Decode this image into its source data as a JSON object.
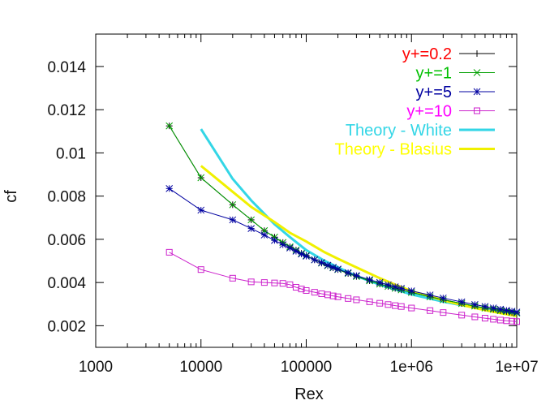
{
  "chart_data": {
    "type": "line",
    "xlabel": "Rex",
    "ylabel": "cf",
    "xscale": "log",
    "xlim": [
      1000,
      10000000
    ],
    "ylim": [
      0.001,
      0.0155
    ],
    "x_ticks": [
      {
        "value": 1000,
        "label": "1000"
      },
      {
        "value": 10000,
        "label": "10000"
      },
      {
        "value": 100000,
        "label": "100000"
      },
      {
        "value": 1000000,
        "label": "1e+06"
      },
      {
        "value": 10000000,
        "label": "1e+07"
      }
    ],
    "y_ticks": [
      {
        "value": 0.002,
        "label": "0.002"
      },
      {
        "value": 0.004,
        "label": "0.004"
      },
      {
        "value": 0.006,
        "label": "0.006"
      },
      {
        "value": 0.008,
        "label": "0.008"
      },
      {
        "value": 0.01,
        "label": "0.01"
      },
      {
        "value": 0.012,
        "label": "0.012"
      },
      {
        "value": 0.014,
        "label": "0.014"
      }
    ],
    "legend_position": "top-right",
    "grid": false,
    "series": [
      {
        "name": "y+=0.2",
        "color": "#ff0000",
        "line_color": "#000000",
        "marker": "plus",
        "x": [
          5000,
          10000,
          20000,
          30000,
          40000,
          50000,
          60000,
          70000,
          80000,
          90000,
          100000,
          120000,
          140000,
          160000,
          180000,
          200000,
          250000,
          300000,
          400000,
          500000,
          600000,
          700000,
          800000,
          1000000,
          1500000,
          2000000,
          3000000,
          4000000,
          5000000,
          6000000,
          7000000,
          8000000,
          9000000,
          10000000
        ],
        "y": [
          0.01125,
          0.00885,
          0.0076,
          0.0069,
          0.0064,
          0.0061,
          0.00585,
          0.00565,
          0.0055,
          0.00535,
          0.00525,
          0.00505,
          0.0049,
          0.00478,
          0.00468,
          0.0046,
          0.00442,
          0.00428,
          0.00408,
          0.00393,
          0.00382,
          0.00373,
          0.00366,
          0.00354,
          0.00334,
          0.0032,
          0.00303,
          0.00291,
          0.00282,
          0.00276,
          0.0027,
          0.00266,
          0.00262,
          0.00258
        ]
      },
      {
        "name": "y+=1",
        "color": "#00c000",
        "line_color": "#00a000",
        "marker": "x",
        "x": [
          5000,
          10000,
          20000,
          30000,
          40000,
          50000,
          60000,
          70000,
          80000,
          90000,
          100000,
          120000,
          140000,
          160000,
          180000,
          200000,
          250000,
          300000,
          400000,
          500000,
          600000,
          700000,
          800000,
          1000000,
          1500000,
          2000000,
          3000000,
          4000000,
          5000000,
          6000000,
          7000000,
          8000000,
          9000000,
          10000000
        ],
        "y": [
          0.01125,
          0.00885,
          0.0076,
          0.0069,
          0.0064,
          0.0061,
          0.00585,
          0.00565,
          0.0055,
          0.00535,
          0.00525,
          0.00505,
          0.0049,
          0.00478,
          0.00468,
          0.0046,
          0.00442,
          0.00428,
          0.00408,
          0.00393,
          0.00382,
          0.00373,
          0.00366,
          0.00354,
          0.00334,
          0.0032,
          0.00303,
          0.00291,
          0.00282,
          0.00276,
          0.0027,
          0.00266,
          0.00262,
          0.00258
        ]
      },
      {
        "name": "y+=5",
        "color": "#0000a0",
        "line_color": "#0000a0",
        "marker": "star",
        "x": [
          5000,
          10000,
          20000,
          30000,
          40000,
          50000,
          60000,
          70000,
          80000,
          90000,
          100000,
          120000,
          140000,
          160000,
          180000,
          200000,
          250000,
          300000,
          400000,
          500000,
          600000,
          700000,
          800000,
          1000000,
          1500000,
          2000000,
          3000000,
          4000000,
          5000000,
          6000000,
          7000000,
          8000000,
          9000000,
          10000000
        ],
        "y": [
          0.00835,
          0.00735,
          0.0069,
          0.0065,
          0.0062,
          0.00595,
          0.00575,
          0.0056,
          0.00545,
          0.00532,
          0.00522,
          0.00505,
          0.00492,
          0.0048,
          0.0047,
          0.00462,
          0.00445,
          0.00432,
          0.00413,
          0.004,
          0.00389,
          0.0038,
          0.00373,
          0.00361,
          0.00342,
          0.00328,
          0.0031,
          0.00298,
          0.00289,
          0.00282,
          0.00276,
          0.00271,
          0.00267,
          0.00263
        ]
      },
      {
        "name": "y+=10",
        "color": "#ff00ff",
        "line_color": "#cc22cc",
        "marker": "square",
        "x": [
          5000,
          10000,
          20000,
          30000,
          40000,
          50000,
          60000,
          70000,
          80000,
          90000,
          100000,
          120000,
          140000,
          160000,
          180000,
          200000,
          250000,
          300000,
          400000,
          500000,
          600000,
          700000,
          800000,
          1000000,
          1500000,
          2000000,
          3000000,
          4000000,
          5000000,
          6000000,
          7000000,
          8000000,
          9000000,
          10000000
        ],
        "y": [
          0.0054,
          0.0046,
          0.0042,
          0.00403,
          0.004,
          0.00398,
          0.00396,
          0.0039,
          0.00378,
          0.0037,
          0.00363,
          0.00355,
          0.00348,
          0.00343,
          0.00338,
          0.00334,
          0.00326,
          0.0032,
          0.00311,
          0.00304,
          0.00298,
          0.00293,
          0.00289,
          0.00282,
          0.0027,
          0.00261,
          0.00249,
          0.00241,
          0.00235,
          0.0023,
          0.00226,
          0.00223,
          0.00221,
          0.00219
        ]
      },
      {
        "name": "Theory - White",
        "color": "#33d6e6",
        "line_color": "#33d6e6",
        "marker": "none",
        "x": [
          10000,
          20000,
          30000,
          50000,
          70000,
          100000,
          150000,
          200000,
          300000,
          500000,
          700000,
          1000000,
          2000000,
          3000000,
          5000000,
          7000000,
          10000000
        ],
        "y": [
          0.0111,
          0.0088,
          0.0078,
          0.0067,
          0.0061,
          0.0055,
          0.005,
          0.0047,
          0.0043,
          0.0039,
          0.00368,
          0.00345,
          0.00312,
          0.00295,
          0.00278,
          0.00268,
          0.00258
        ]
      },
      {
        "name": "Theory - Blasius",
        "color": "#ffff00",
        "line_color": "#f0f000",
        "marker": "none",
        "x": [
          10000,
          20000,
          30000,
          50000,
          70000,
          100000,
          150000,
          200000,
          300000,
          500000,
          700000,
          1000000,
          2000000,
          3000000,
          5000000,
          7000000,
          10000000
        ],
        "y": [
          0.0094,
          0.0082,
          0.0075,
          0.0068,
          0.0063,
          0.0059,
          0.0054,
          0.0051,
          0.0047,
          0.0042,
          0.0039,
          0.0036,
          0.00318,
          0.00296,
          0.00272,
          0.00258,
          0.00245
        ]
      }
    ]
  }
}
